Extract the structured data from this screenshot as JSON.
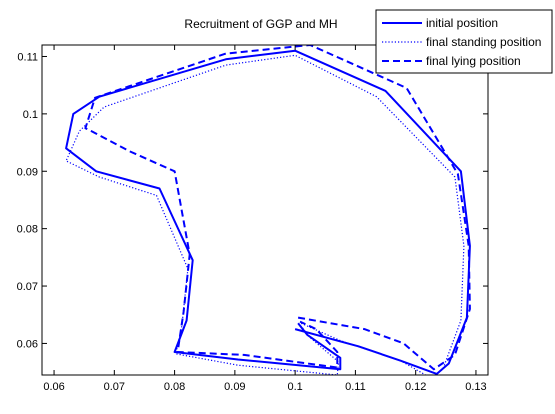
{
  "chart_data": {
    "type": "line",
    "title": "Recruitment of GGP and MH",
    "xlabel": "",
    "ylabel": "",
    "xlim": [
      0.058,
      0.132
    ],
    "ylim": [
      0.0545,
      0.112
    ],
    "xticks": [
      0.06,
      0.07,
      0.08,
      0.09,
      0.1,
      0.11,
      0.12,
      0.13
    ],
    "xtick_labels": [
      "0.06",
      "0.07",
      "0.08",
      "0.09",
      "0.1",
      "0.11",
      "0.12",
      "0.13"
    ],
    "yticks": [
      0.06,
      0.07,
      0.08,
      0.09,
      0.1,
      0.11
    ],
    "ytick_labels": [
      "0.06",
      "0.07",
      "0.08",
      "0.09",
      "0.1",
      "0.11"
    ],
    "grid": false,
    "legend_position": "top-right",
    "color": "#0000ff",
    "series": [
      {
        "name": "initial position",
        "style": "solid",
        "points": [
          [
            0.1,
            0.0625
          ],
          [
            0.1105,
            0.0595
          ],
          [
            0.1175,
            0.057
          ],
          [
            0.1235,
            0.0547
          ],
          [
            0.1255,
            0.0565
          ],
          [
            0.1285,
            0.0645
          ],
          [
            0.129,
            0.077
          ],
          [
            0.1275,
            0.09
          ],
          [
            0.115,
            0.104
          ],
          [
            0.1,
            0.111
          ],
          [
            0.0885,
            0.1095
          ],
          [
            0.0675,
            0.103
          ],
          [
            0.0632,
            0.1
          ],
          [
            0.062,
            0.094
          ],
          [
            0.067,
            0.09
          ],
          [
            0.0775,
            0.087
          ],
          [
            0.083,
            0.0745
          ],
          [
            0.082,
            0.064
          ],
          [
            0.08,
            0.0585
          ],
          [
            0.0905,
            0.0572
          ],
          [
            0.1075,
            0.0555
          ],
          [
            0.1075,
            0.0575
          ],
          [
            0.102,
            0.0615
          ],
          [
            0.1005,
            0.0635
          ]
        ]
      },
      {
        "name": "final standing position",
        "style": "dotted",
        "points": [
          [
            0.101,
            0.0635
          ],
          [
            0.1075,
            0.0605
          ],
          [
            0.1175,
            0.057
          ],
          [
            0.1225,
            0.054
          ],
          [
            0.1245,
            0.0555
          ],
          [
            0.1275,
            0.064
          ],
          [
            0.128,
            0.077
          ],
          [
            0.1265,
            0.089
          ],
          [
            0.1135,
            0.103
          ],
          [
            0.1,
            0.1102
          ],
          [
            0.0885,
            0.1085
          ],
          [
            0.0683,
            0.1012
          ],
          [
            0.0642,
            0.097
          ],
          [
            0.062,
            0.0918
          ],
          [
            0.0675,
            0.089
          ],
          [
            0.077,
            0.0858
          ],
          [
            0.0822,
            0.073
          ],
          [
            0.0812,
            0.063
          ],
          [
            0.0802,
            0.0582
          ],
          [
            0.0905,
            0.0562
          ],
          [
            0.107,
            0.0545
          ],
          [
            0.1072,
            0.0568
          ],
          [
            0.1025,
            0.061
          ],
          [
            0.101,
            0.063
          ]
        ]
      },
      {
        "name": "final lying position",
        "style": "dashed",
        "points": [
          [
            0.1005,
            0.0645
          ],
          [
            0.1115,
            0.0625
          ],
          [
            0.118,
            0.06
          ],
          [
            0.123,
            0.0555
          ],
          [
            0.1265,
            0.058
          ],
          [
            0.129,
            0.066
          ],
          [
            0.1288,
            0.077
          ],
          [
            0.127,
            0.0895
          ],
          [
            0.1185,
            0.1045
          ],
          [
            0.1025,
            0.112
          ],
          [
            0.0885,
            0.1105
          ],
          [
            0.0668,
            0.1028
          ],
          [
            0.0652,
            0.0975
          ],
          [
            0.0662,
            0.097
          ],
          [
            0.0725,
            0.0935
          ],
          [
            0.08,
            0.09
          ],
          [
            0.0825,
            0.0755
          ],
          [
            0.0815,
            0.0655
          ],
          [
            0.0805,
            0.0585
          ],
          [
            0.0915,
            0.058
          ],
          [
            0.107,
            0.0558
          ],
          [
            0.107,
            0.0585
          ],
          [
            0.1035,
            0.0625
          ],
          [
            0.1008,
            0.0638
          ]
        ]
      }
    ]
  }
}
